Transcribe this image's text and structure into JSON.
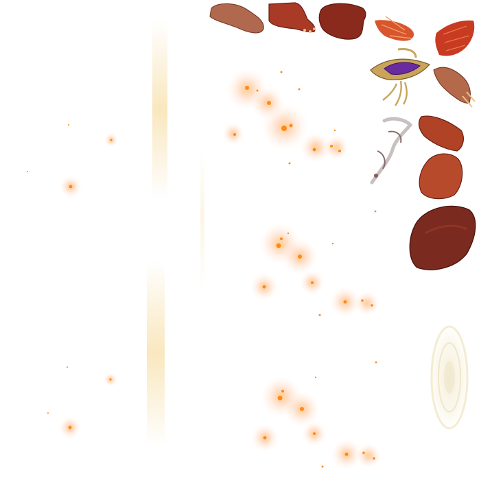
{
  "texture_atlas": {
    "background": "#ffffff",
    "sprites": [
      {
        "name": "brown-leather-piece-sprite",
        "color": "#b0684f"
      },
      {
        "name": "red-fur-paw-sprite",
        "color": "#a83a26"
      },
      {
        "name": "dark-red-fur-patch-sprite",
        "color": "#8a2a1c"
      },
      {
        "name": "orange-feather-tuft-sprite",
        "color": "#d8552e"
      },
      {
        "name": "red-feather-wing-sprite",
        "color": "#c83a22"
      },
      {
        "name": "purple-gem-ornament-sprite",
        "color": "#6a2aa0"
      },
      {
        "name": "leather-claw-piece-sprite",
        "color": "#b46a4a"
      },
      {
        "name": "white-bone-chain-sprite",
        "color": "#c8c0c0"
      },
      {
        "name": "red-fur-strip-sprite",
        "color": "#b04226"
      },
      {
        "name": "red-fur-oval-sprite",
        "color": "#b84a2c"
      },
      {
        "name": "dark-red-fur-blob-sprite",
        "color": "#7a2a1e"
      },
      {
        "name": "pale-magic-circle-sprite",
        "color": "#e8e0b8"
      }
    ],
    "effects": {
      "ember_color": "#ff8a1a",
      "glow_color": "#ffb07a",
      "light_streak_color": "#f4d48a"
    }
  }
}
